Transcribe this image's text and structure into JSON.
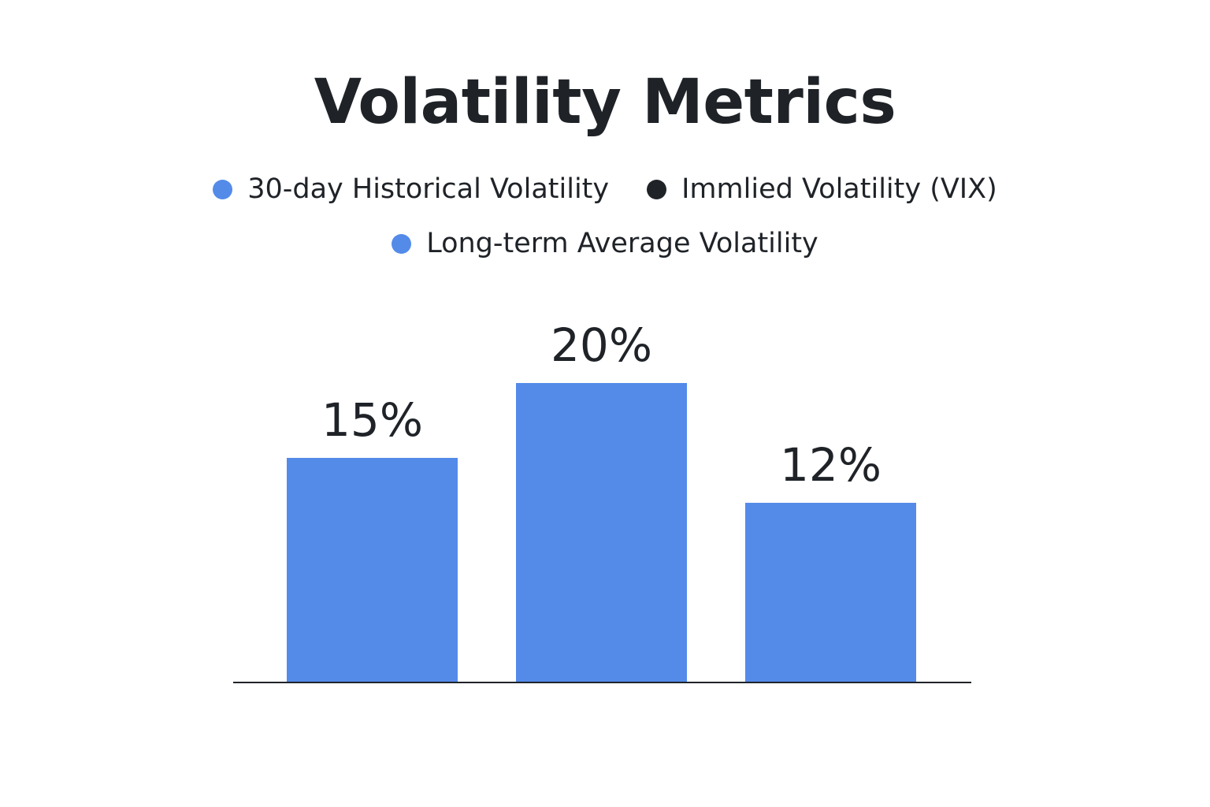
{
  "chart_data": {
    "type": "bar",
    "title": "Volatility Metrics",
    "categories": [
      "30-day Historical Volatility",
      "Immlied Volatility (VIX)",
      "Long-term Average Volatility"
    ],
    "values": [
      15,
      20,
      12
    ],
    "value_labels": [
      "15%",
      "20%",
      "12%"
    ],
    "unit": "%",
    "ylim": [
      0,
      26
    ],
    "grid": false,
    "legend_placement": "top-center",
    "bar_color": "#548be9",
    "axis_color": "#1f2328",
    "legend": [
      {
        "label": "30-day Historical Volatility",
        "color": "#548be9"
      },
      {
        "label": "Immlied Volatility (VIX)",
        "color": "#1f2328"
      },
      {
        "label": "Long-term Average Volatility",
        "color": "#548be9"
      }
    ]
  }
}
